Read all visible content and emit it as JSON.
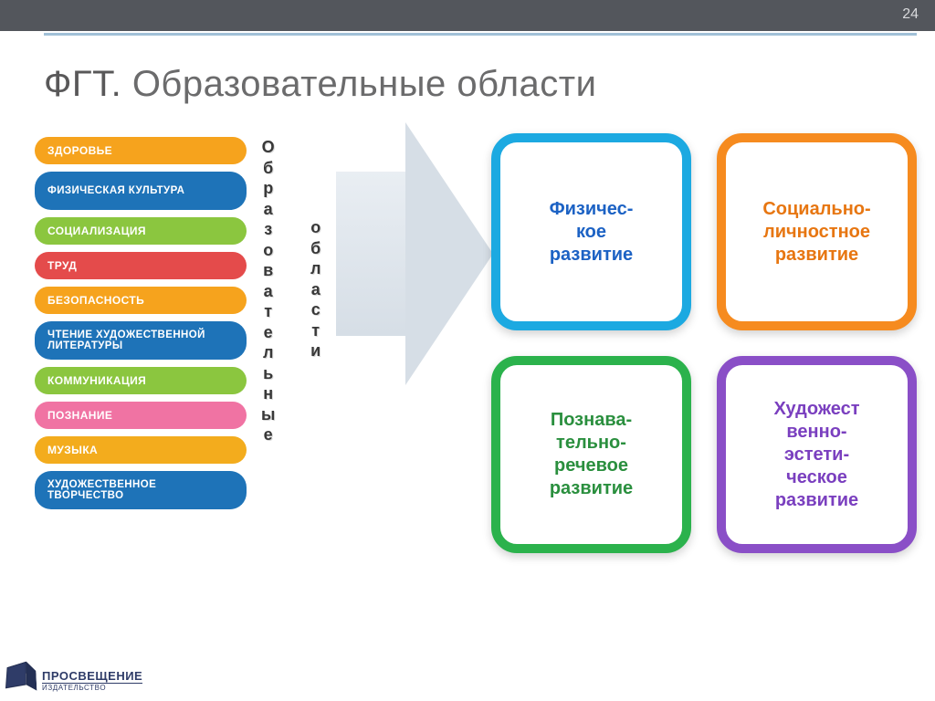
{
  "page": {
    "number": "24",
    "strip_color": "#53565c",
    "accent_color": "#a1c0d7",
    "bg": "#ffffff"
  },
  "title": {
    "prefix": "ФГТ.",
    "rest": "Образовательные области",
    "color_prefix": "#595859",
    "color_rest": "#6b6b6c",
    "fontsize": 40
  },
  "bars": {
    "items": [
      {
        "label": "ЗДОРОВЬЕ",
        "color": "#f6a31d",
        "multiline": false
      },
      {
        "label": "ФИЗИЧЕСКАЯ КУЛЬТУРА",
        "color": "#1e73b8",
        "multiline": true
      },
      {
        "label": "СОЦИАЛИЗАЦИЯ",
        "color": "#8bc63f",
        "multiline": false
      },
      {
        "label": "ТРУД",
        "color": "#e44b4b",
        "multiline": false
      },
      {
        "label": "БЕЗОПАСНОСТЬ",
        "color": "#f6a31d",
        "multiline": false
      },
      {
        "label": "ЧТЕНИЕ ХУДОЖЕСТВЕННОЙ ЛИТЕРАТУРЫ",
        "color": "#1e73b8",
        "multiline": true
      },
      {
        "label": "КОММУНИКАЦИЯ",
        "color": "#8bc63f",
        "multiline": false
      },
      {
        "label": "ПОЗНАНИЕ",
        "color": "#f073a3",
        "multiline": false
      },
      {
        "label": "МУЗЫКА",
        "color": "#f3ac1d",
        "multiline": false
      },
      {
        "label": "ХУДОЖЕСТВЕННОЕ ТВОРЧЕСТВО",
        "color": "#1e73b8",
        "multiline": true
      }
    ],
    "font_size": 12,
    "text_color": "#ffffff"
  },
  "vertical_labels": {
    "word1": "Образовательные",
    "word2": "области",
    "font_size": 18,
    "color": "#383838"
  },
  "arrow": {
    "fill_from": "#e9eef3",
    "fill_to": "#d6dee6"
  },
  "cards": {
    "type": "infographic",
    "layout": "2x2",
    "items": [
      {
        "key": "phys",
        "label": "Физичес-\nкое\nразвитие",
        "border": "#1ca9e1",
        "text": "#1c62c4"
      },
      {
        "key": "soc",
        "label": "Социально-\nличностное\nразвитие",
        "border": "#f68b1f",
        "text": "#e77611"
      },
      {
        "key": "pozn",
        "label": "Познава-\nтельно-\nречевое\nразвитие",
        "border": "#2bb24c",
        "text": "#2a8f3e"
      },
      {
        "key": "hud",
        "label": "Художест\nвенно-\nэстети-\nческое\nразвитие",
        "border": "#8a4fc7",
        "text": "#7a3fbf"
      }
    ],
    "font_size": 20,
    "border_radius": 28,
    "border_width": 10
  },
  "logo": {
    "name": "ПРОСВЕЩЕНИЕ",
    "sub": "ИЗДАТЕЛЬСТВО",
    "color": "#2f3c68"
  }
}
